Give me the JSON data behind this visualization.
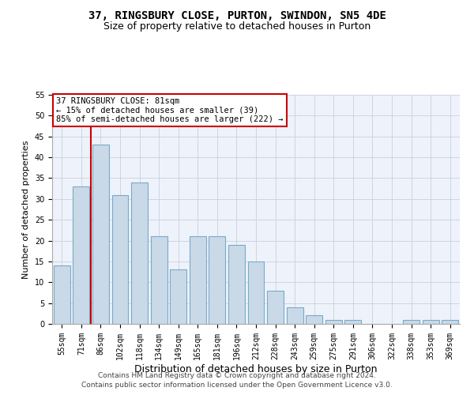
{
  "title": "37, RINGSBURY CLOSE, PURTON, SWINDON, SN5 4DE",
  "subtitle": "Size of property relative to detached houses in Purton",
  "xlabel": "Distribution of detached houses by size in Purton",
  "ylabel": "Number of detached properties",
  "categories": [
    "55sqm",
    "71sqm",
    "86sqm",
    "102sqm",
    "118sqm",
    "134sqm",
    "149sqm",
    "165sqm",
    "181sqm",
    "196sqm",
    "212sqm",
    "228sqm",
    "243sqm",
    "259sqm",
    "275sqm",
    "291sqm",
    "306sqm",
    "322sqm",
    "338sqm",
    "353sqm",
    "369sqm"
  ],
  "values": [
    14,
    33,
    43,
    31,
    34,
    21,
    13,
    21,
    21,
    19,
    15,
    8,
    4,
    2,
    1,
    1,
    0,
    0,
    1,
    1,
    1
  ],
  "bar_color": "#c9d9e8",
  "bar_edge_color": "#7aaac8",
  "bar_edge_width": 0.8,
  "vline_x": 1.5,
  "vline_color": "#cc0000",
  "annotation_text": "37 RINGSBURY CLOSE: 81sqm\n← 15% of detached houses are smaller (39)\n85% of semi-detached houses are larger (222) →",
  "annotation_box_color": "#ffffff",
  "annotation_box_edge": "#cc0000",
  "ylim": [
    0,
    55
  ],
  "yticks": [
    0,
    5,
    10,
    15,
    20,
    25,
    30,
    35,
    40,
    45,
    50,
    55
  ],
  "grid_color": "#c8d0e0",
  "background_color": "#eef2fa",
  "footer1": "Contains HM Land Registry data © Crown copyright and database right 2024.",
  "footer2": "Contains public sector information licensed under the Open Government Licence v3.0.",
  "title_fontsize": 10,
  "subtitle_fontsize": 9,
  "xlabel_fontsize": 9,
  "ylabel_fontsize": 8,
  "tick_fontsize": 7,
  "annotation_fontsize": 7.5,
  "footer_fontsize": 6.5
}
